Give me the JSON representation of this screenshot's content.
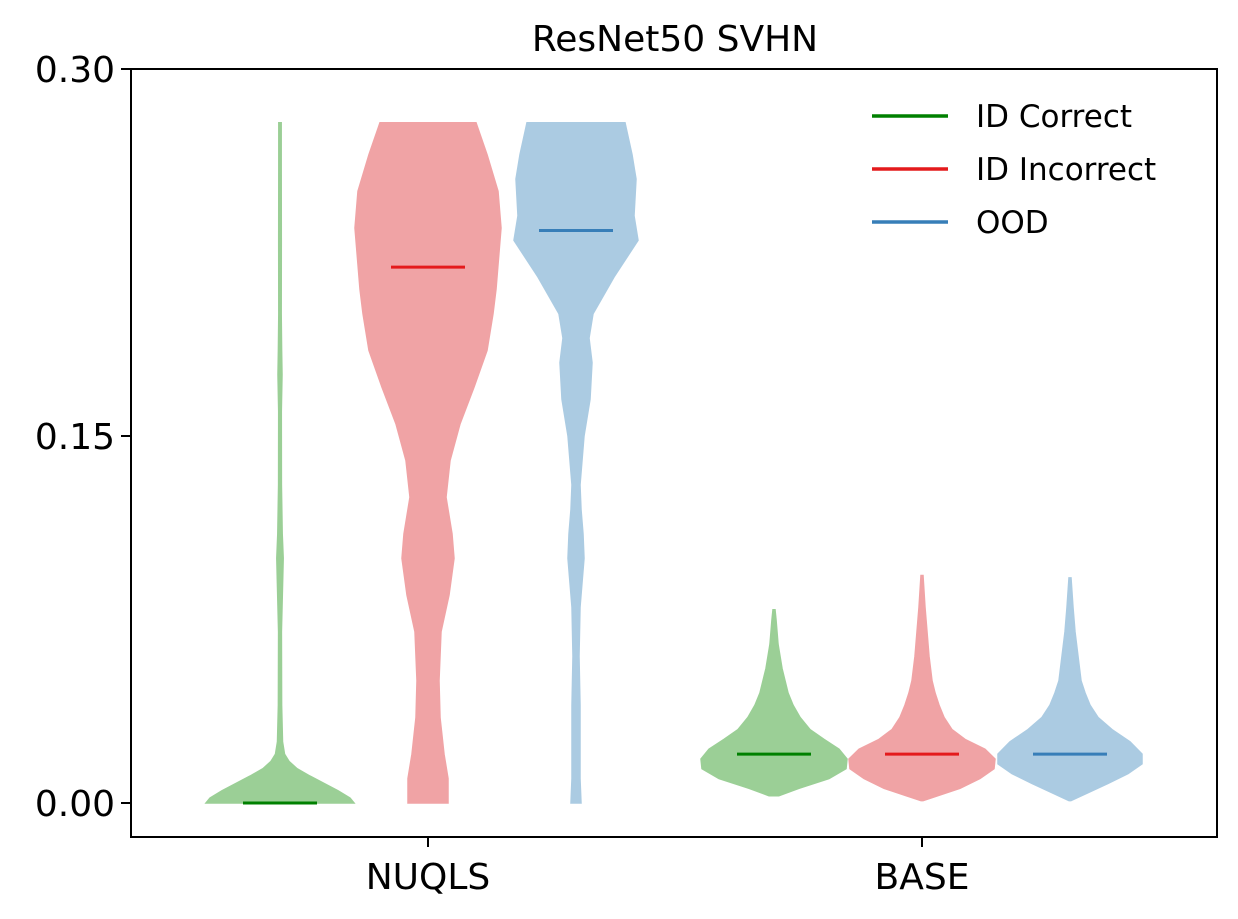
{
  "chart_data": {
    "type": "violin",
    "title": "ResNet50 SVHN",
    "xlabel": "",
    "ylabel": "",
    "categories": [
      "NUQLS",
      "BASE"
    ],
    "ylim": [
      -0.014,
      0.3
    ],
    "yticks": [
      0.0,
      0.15,
      0.3
    ],
    "ytick_labels": [
      "0.00",
      "0.15",
      "0.30"
    ],
    "legend_position": "top-right",
    "grid": false,
    "series": [
      {
        "name": "ID Correct",
        "color": "#008000",
        "fill": "#9bcf96",
        "values": [
          {
            "category": "NUQLS",
            "median": 0.0,
            "min": 0.0,
            "max": 0.278,
            "density": [
              [
                0.0,
                74
              ],
              [
                0.002,
                70
              ],
              [
                0.005,
                58
              ],
              [
                0.008,
                44
              ],
              [
                0.011,
                30
              ],
              [
                0.014,
                17
              ],
              [
                0.017,
                9
              ],
              [
                0.02,
                4.5
              ],
              [
                0.025,
                2.5
              ],
              [
                0.04,
                1.6
              ],
              [
                0.07,
                1.4
              ],
              [
                0.09,
                2.6
              ],
              [
                0.1,
                3.2
              ],
              [
                0.11,
                2.2
              ],
              [
                0.13,
                1.4
              ],
              [
                0.16,
                1.3
              ],
              [
                0.175,
                2.0
              ],
              [
                0.185,
                1.6
              ],
              [
                0.2,
                1.2
              ],
              [
                0.23,
                1.3
              ],
              [
                0.26,
                1.2
              ],
              [
                0.278,
                1.2
              ]
            ]
          },
          {
            "category": "BASE",
            "median": 0.02,
            "min": 0.003,
            "max": 0.079,
            "density": [
              [
                0.003,
                5
              ],
              [
                0.006,
                25
              ],
              [
                0.01,
                55
              ],
              [
                0.014,
                72
              ],
              [
                0.018,
                73
              ],
              [
                0.022,
                65
              ],
              [
                0.026,
                50
              ],
              [
                0.03,
                36
              ],
              [
                0.035,
                26
              ],
              [
                0.04,
                19
              ],
              [
                0.045,
                14
              ],
              [
                0.05,
                11
              ],
              [
                0.055,
                8
              ],
              [
                0.06,
                6
              ],
              [
                0.065,
                4
              ],
              [
                0.07,
                3
              ],
              [
                0.075,
                2
              ],
              [
                0.079,
                1
              ]
            ]
          }
        ]
      },
      {
        "name": "ID Incorrect",
        "color": "#e41a1c",
        "fill": "#f0a3a5",
        "values": [
          {
            "category": "NUQLS",
            "median": 0.219,
            "min": 0.0,
            "max": 0.278,
            "density": [
              [
                0.0,
                20
              ],
              [
                0.01,
                20
              ],
              [
                0.02,
                16
              ],
              [
                0.035,
                12
              ],
              [
                0.05,
                11
              ],
              [
                0.07,
                13
              ],
              [
                0.085,
                21
              ],
              [
                0.1,
                26
              ],
              [
                0.11,
                24
              ],
              [
                0.125,
                18
              ],
              [
                0.14,
                22
              ],
              [
                0.155,
                32
              ],
              [
                0.17,
                46
              ],
              [
                0.185,
                59
              ],
              [
                0.2,
                65
              ],
              [
                0.21,
                68
              ],
              [
                0.22,
                70
              ],
              [
                0.235,
                73
              ],
              [
                0.25,
                70
              ],
              [
                0.265,
                59
              ],
              [
                0.278,
                48
              ]
            ]
          },
          {
            "category": "BASE",
            "median": 0.02,
            "min": 0.001,
            "max": 0.093,
            "density": [
              [
                0.001,
                1
              ],
              [
                0.003,
                16
              ],
              [
                0.006,
                38
              ],
              [
                0.01,
                58
              ],
              [
                0.014,
                72
              ],
              [
                0.018,
                73
              ],
              [
                0.022,
                63
              ],
              [
                0.026,
                43
              ],
              [
                0.03,
                30
              ],
              [
                0.035,
                22
              ],
              [
                0.04,
                17
              ],
              [
                0.045,
                13
              ],
              [
                0.05,
                10
              ],
              [
                0.06,
                7
              ],
              [
                0.07,
                5
              ],
              [
                0.08,
                3
              ],
              [
                0.093,
                1
              ]
            ]
          }
        ]
      },
      {
        "name": "OOD",
        "color": "#377eb8",
        "fill": "#abcbe2",
        "values": [
          {
            "category": "NUQLS",
            "median": 0.234,
            "min": 0.0,
            "max": 0.278,
            "density": [
              [
                0.0,
                5
              ],
              [
                0.01,
                4
              ],
              [
                0.02,
                4
              ],
              [
                0.04,
                4
              ],
              [
                0.06,
                3
              ],
              [
                0.08,
                4
              ],
              [
                0.09,
                6
              ],
              [
                0.1,
                8
              ],
              [
                0.11,
                7
              ],
              [
                0.12,
                5
              ],
              [
                0.13,
                4
              ],
              [
                0.15,
                8
              ],
              [
                0.165,
                14
              ],
              [
                0.18,
                16
              ],
              [
                0.19,
                13
              ],
              [
                0.2,
                17
              ],
              [
                0.215,
                38
              ],
              [
                0.23,
                62
              ],
              [
                0.24,
                58
              ],
              [
                0.255,
                60
              ],
              [
                0.265,
                56
              ],
              [
                0.278,
                49
              ]
            ]
          },
          {
            "category": "BASE",
            "median": 0.02,
            "min": 0.001,
            "max": 0.092,
            "density": [
              [
                0.001,
                1
              ],
              [
                0.004,
                17
              ],
              [
                0.008,
                38
              ],
              [
                0.012,
                58
              ],
              [
                0.016,
                72
              ],
              [
                0.02,
                72
              ],
              [
                0.025,
                60
              ],
              [
                0.03,
                42
              ],
              [
                0.035,
                28
              ],
              [
                0.04,
                20
              ],
              [
                0.045,
                15
              ],
              [
                0.05,
                11
              ],
              [
                0.06,
                8
              ],
              [
                0.07,
                5
              ],
              [
                0.08,
                3
              ],
              [
                0.092,
                1
              ]
            ]
          }
        ]
      }
    ]
  }
}
